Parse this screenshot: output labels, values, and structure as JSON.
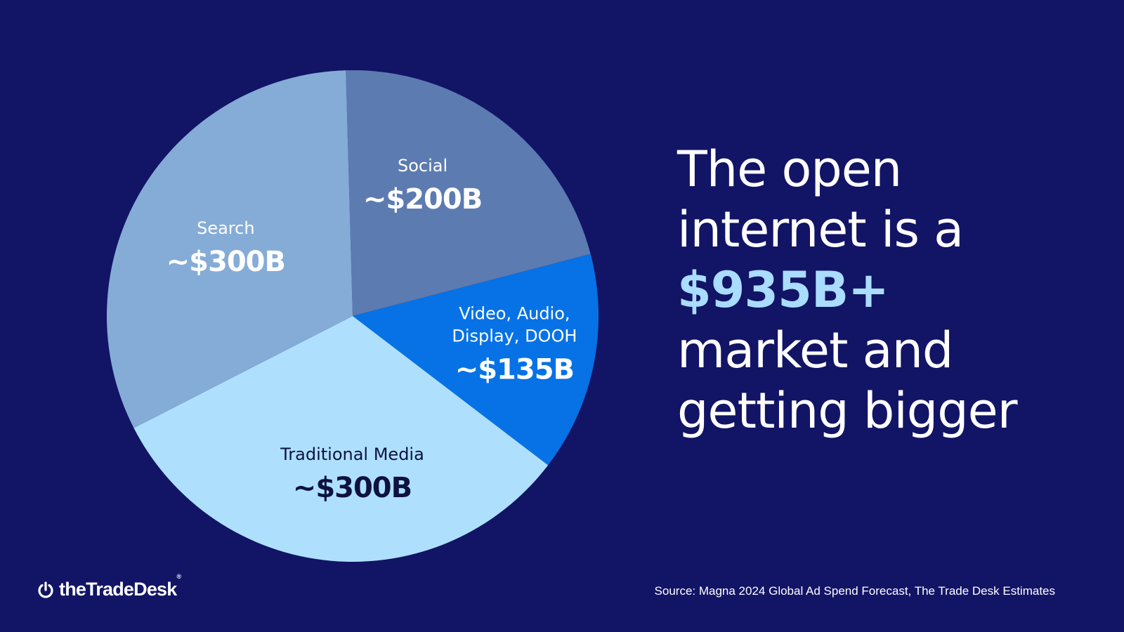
{
  "chart_data": {
    "type": "pie",
    "slices": [
      {
        "category": "Social",
        "value_label": "~$200B",
        "value": 200,
        "color": "#5c7bb1",
        "text_color": "#ffffff"
      },
      {
        "category": "Video, Audio,\nDisplay, DOOH",
        "value_label": "~$135B",
        "value": 135,
        "color": "#0672e6",
        "text_color": "#ffffff"
      },
      {
        "category": "Traditional Media",
        "value_label": "~$300B",
        "value": 300,
        "color": "#aee0fd",
        "text_color": "#0e1240"
      },
      {
        "category": "Search",
        "value_label": "~$300B",
        "value": 300,
        "color": "#85acd6",
        "text_color": "#ffffff"
      }
    ]
  },
  "headline": {
    "line1": "The open",
    "line2": "internet is a",
    "highlight": "$935B+",
    "line4": "market and",
    "line5": "getting bigger",
    "highlight_color": "#a9dcff"
  },
  "footer": {
    "logo_text": "theTradeDesk",
    "logo_reg": "®",
    "source": "Source: Magna 2024 Global Ad Spend Forecast, The Trade Desk Estimates"
  },
  "colors": {
    "background": "#121466"
  }
}
